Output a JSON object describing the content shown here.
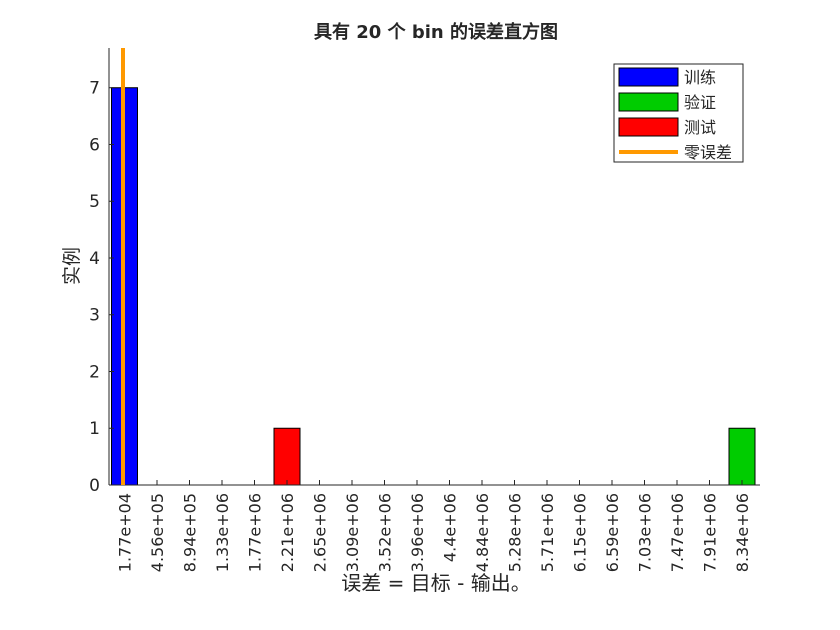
{
  "chart_data": {
    "type": "bar",
    "title": "具有 20 个 bin 的误差直方图",
    "xlabel": "误差 = 目标 - 输出。",
    "ylabel": "实例",
    "categories": [
      "1.77e+04",
      "4.56e+05",
      "8.94e+05",
      "1.33e+06",
      "1.77e+06",
      "2.21e+06",
      "2.65e+06",
      "3.09e+06",
      "3.52e+06",
      "3.96e+06",
      "4.4e+06",
      "4.84e+06",
      "5.28e+06",
      "5.71e+06",
      "6.15e+06",
      "6.59e+06",
      "7.03e+06",
      "7.47e+06",
      "7.91e+06",
      "8.34e+06"
    ],
    "series": [
      {
        "name": "训练",
        "color": "#0000ff",
        "values": [
          7,
          0,
          0,
          0,
          0,
          0,
          0,
          0,
          0,
          0,
          0,
          0,
          0,
          0,
          0,
          0,
          0,
          0,
          0,
          0
        ]
      },
      {
        "name": "验证",
        "color": "#00cc00",
        "values": [
          0,
          0,
          0,
          0,
          0,
          0,
          0,
          0,
          0,
          0,
          0,
          0,
          0,
          0,
          0,
          0,
          0,
          0,
          0,
          1
        ]
      },
      {
        "name": "测试",
        "color": "#ff0000",
        "values": [
          0,
          0,
          0,
          0,
          0,
          1,
          0,
          0,
          0,
          0,
          0,
          0,
          0,
          0,
          0,
          0,
          0,
          0,
          0,
          0
        ]
      }
    ],
    "reference_line": {
      "name": "零误差",
      "color": "#ff9900",
      "x": 0
    },
    "yticks": [
      0,
      1,
      2,
      3,
      4,
      5,
      6,
      7
    ],
    "ylim": [
      0,
      7.7
    ],
    "grid": false,
    "legend_position": "top-right"
  }
}
